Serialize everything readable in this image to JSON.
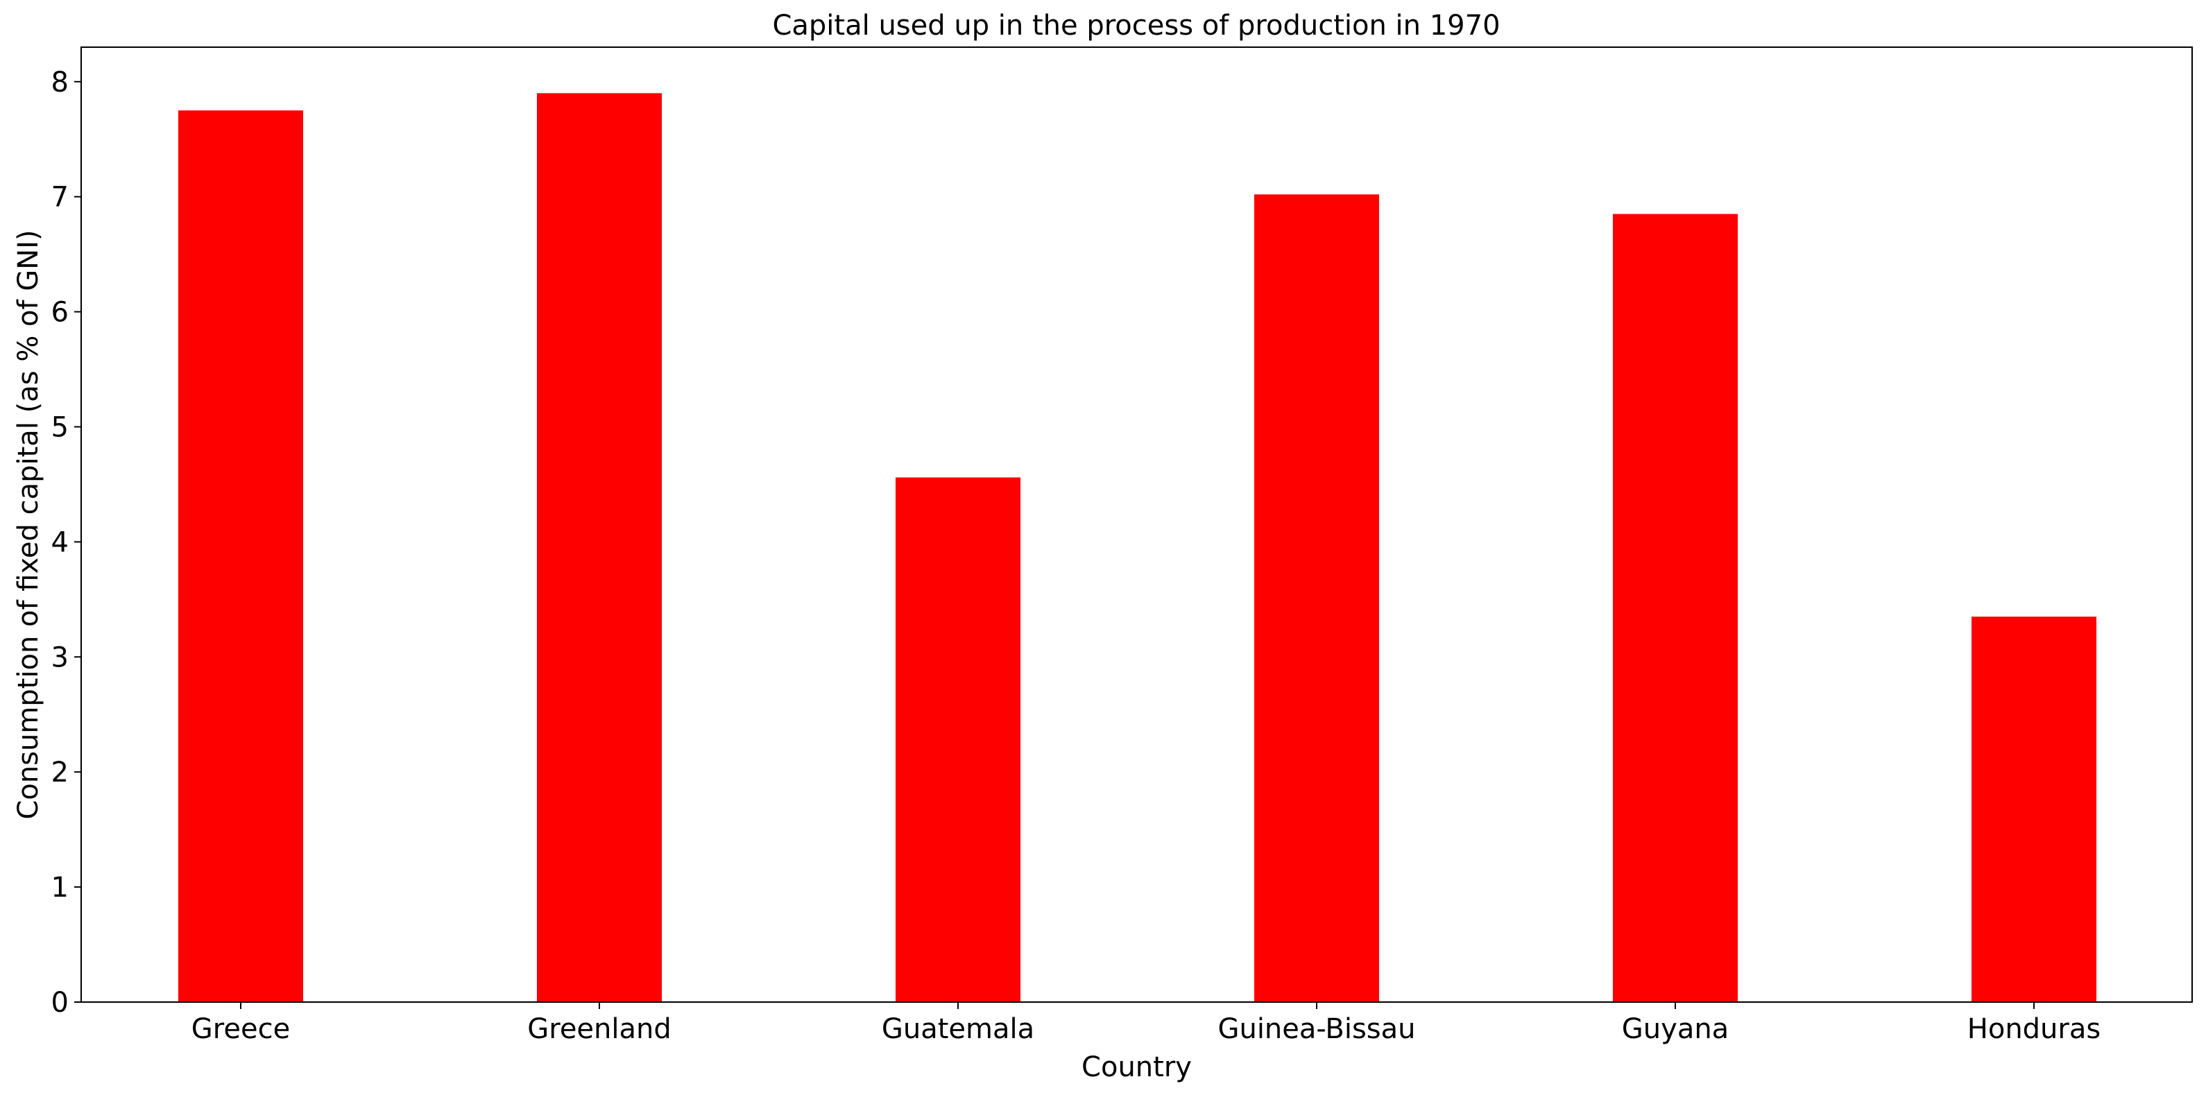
{
  "chart_data": {
    "type": "bar",
    "title": "Capital used up in the process of production in 1970",
    "xlabel": "Country",
    "ylabel": "Consumption of fixed capital (as % of GNI)",
    "categories": [
      "Greece",
      "Greenland",
      "Guatemala",
      "Guinea-Bissau",
      "Guyana",
      "Honduras"
    ],
    "values": [
      7.75,
      7.9,
      4.56,
      7.02,
      6.85,
      3.35
    ],
    "ylim": [
      0,
      8.3
    ],
    "yticks": [
      0,
      1,
      2,
      3,
      4,
      5,
      6,
      7,
      8
    ],
    "bar_color": "#ff0000",
    "grid": false,
    "legend": "none"
  }
}
